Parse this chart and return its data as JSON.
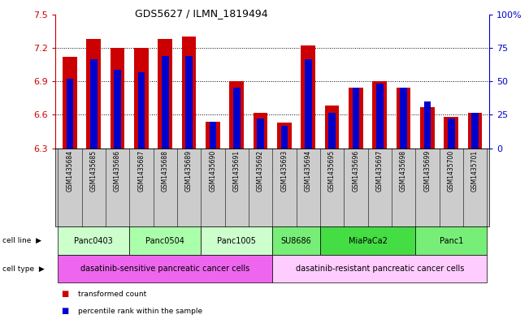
{
  "title": "GDS5627 / ILMN_1819494",
  "samples": [
    "GSM1435684",
    "GSM1435685",
    "GSM1435686",
    "GSM1435687",
    "GSM1435688",
    "GSM1435689",
    "GSM1435690",
    "GSM1435691",
    "GSM1435692",
    "GSM1435693",
    "GSM1435694",
    "GSM1435695",
    "GSM1435696",
    "GSM1435697",
    "GSM1435698",
    "GSM1435699",
    "GSM1435700",
    "GSM1435701"
  ],
  "red_values": [
    7.12,
    7.28,
    7.2,
    7.2,
    7.28,
    7.3,
    6.54,
    6.9,
    6.62,
    6.53,
    7.22,
    6.68,
    6.84,
    6.9,
    6.84,
    6.67,
    6.58,
    6.62
  ],
  "blue_values": [
    6.92,
    7.1,
    7.0,
    6.98,
    7.13,
    7.13,
    6.54,
    6.84,
    6.57,
    6.5,
    7.1,
    6.62,
    6.84,
    6.88,
    6.84,
    6.72,
    6.57,
    6.62
  ],
  "ymin": 6.3,
  "ymax": 7.5,
  "yticks": [
    6.3,
    6.6,
    6.9,
    7.2,
    7.5
  ],
  "y2ticks": [
    0,
    25,
    50,
    75,
    100
  ],
  "cell_lines": [
    {
      "label": "Panc0403",
      "start": 0,
      "end": 3,
      "color": "#ccffcc"
    },
    {
      "label": "Panc0504",
      "start": 3,
      "end": 6,
      "color": "#aaffaa"
    },
    {
      "label": "Panc1005",
      "start": 6,
      "end": 9,
      "color": "#ccffcc"
    },
    {
      "label": "SU8686",
      "start": 9,
      "end": 11,
      "color": "#77ee77"
    },
    {
      "label": "MiaPaCa2",
      "start": 11,
      "end": 15,
      "color": "#44dd44"
    },
    {
      "label": "Panc1",
      "start": 15,
      "end": 18,
      "color": "#77ee77"
    }
  ],
  "cell_types": [
    {
      "label": "dasatinib-sensitive pancreatic cancer cells",
      "start": 0,
      "end": 9,
      "color": "#ee66ee"
    },
    {
      "label": "dasatinib-resistant pancreatic cancer cells",
      "start": 9,
      "end": 18,
      "color": "#ffccff"
    }
  ],
  "bar_color": "#cc0000",
  "blue_color": "#0000cc",
  "label_color_left": "#cc0000",
  "label_color_right": "#0000cc",
  "sample_bg": "#cccccc"
}
